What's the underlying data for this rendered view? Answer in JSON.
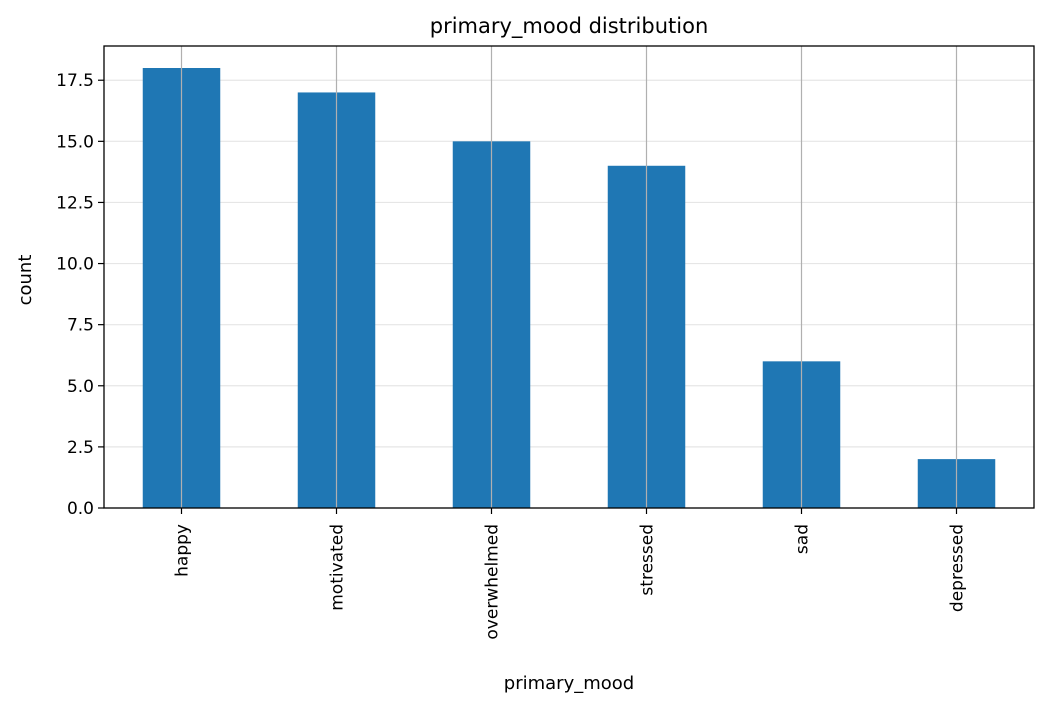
{
  "chart_data": {
    "type": "bar",
    "title": "primary_mood distribution",
    "xlabel": "primary_mood",
    "ylabel": "count",
    "categories": [
      "happy",
      "motivated",
      "overwhelmed",
      "stressed",
      "sad",
      "depressed"
    ],
    "values": [
      18,
      17,
      15,
      14,
      6,
      2
    ],
    "ylim": [
      0,
      18.9
    ],
    "yticks": [
      0.0,
      2.5,
      5.0,
      7.5,
      10.0,
      12.5,
      15.0,
      17.5
    ],
    "ytick_labels": [
      "0.0",
      "2.5",
      "5.0",
      "7.5",
      "10.0",
      "12.5",
      "15.0",
      "17.5"
    ],
    "grid": {
      "horizontal": "light",
      "vertical": "through bar centers"
    },
    "legend": "none",
    "colors": {
      "bar": "#1f77b4",
      "hgrid": "#e6e6e6",
      "vgrid": "#b0b0b0",
      "axis": "#000000"
    }
  }
}
